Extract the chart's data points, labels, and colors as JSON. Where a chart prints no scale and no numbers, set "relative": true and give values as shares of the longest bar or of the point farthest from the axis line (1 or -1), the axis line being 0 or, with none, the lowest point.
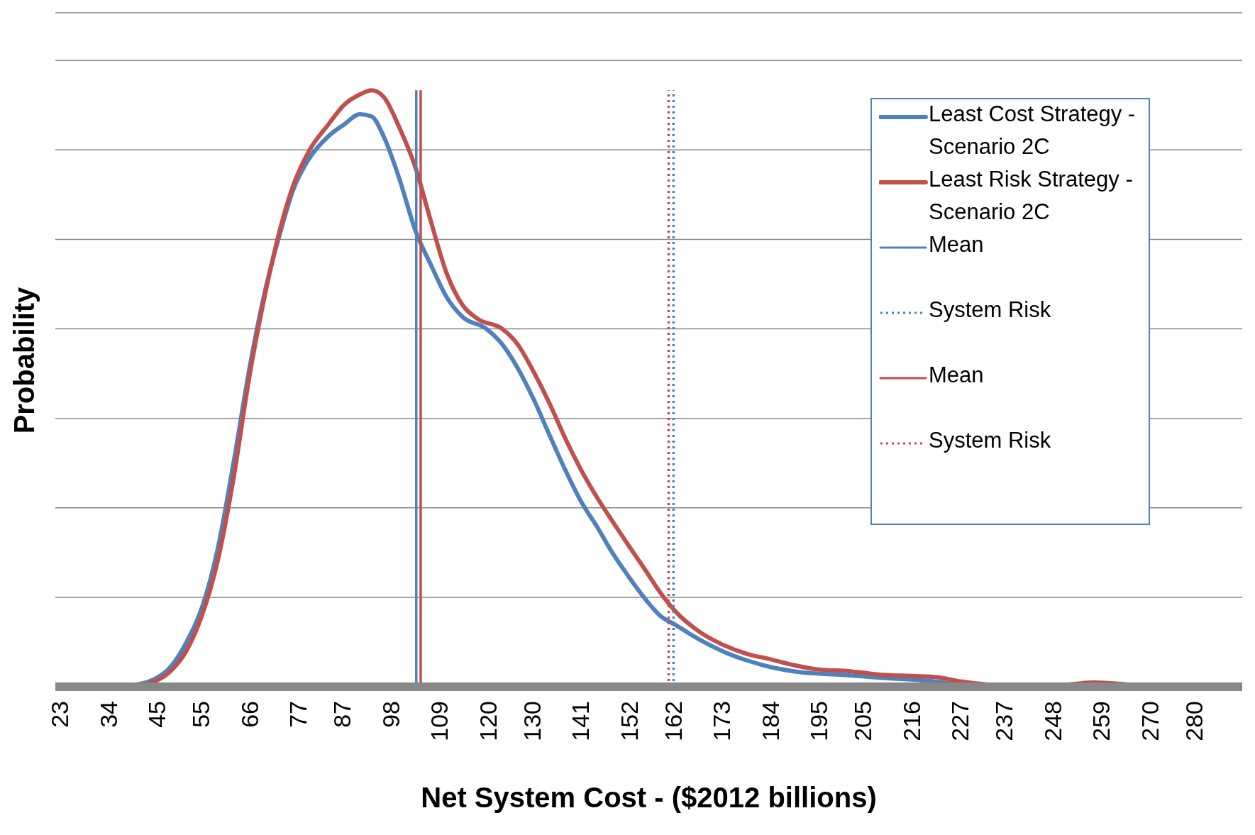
{
  "chart_data": {
    "type": "line",
    "xlabel": "Net System Cost - ($2012 billions)",
    "ylabel": "Probability",
    "relative": true,
    "grid": "y",
    "legend": "top right",
    "marker": "none",
    "xlim": [
      22,
      291
    ],
    "xticks": [
      23,
      34,
      45,
      55,
      66,
      77,
      87,
      98,
      109,
      120,
      130,
      141,
      152,
      162,
      173,
      184,
      195,
      205,
      216,
      227,
      237,
      248,
      259,
      270,
      280
    ],
    "series": [
      {
        "name": "Least Cost Strategy - Scenario 2C",
        "color": "#4f81bd",
        "line_style": "solid",
        "x": [
          22.1,
          39.1,
          44.5,
          48.1,
          51.6,
          55.2,
          58.8,
          62.4,
          66.0,
          69.6,
          73.1,
          75.8,
          79.4,
          83.9,
          87.5,
          91.0,
          93.7,
          96.4,
          100.0,
          103.6,
          107.2,
          110.7,
          114.3,
          119.7,
          123.3,
          126.8,
          130.4,
          134.0,
          137.6,
          141.2,
          144.8,
          148.3,
          151.9,
          155.5,
          159.1,
          162.7,
          168.0,
          173.4,
          178.8,
          184.1,
          191.3,
          200.3,
          209.2,
          218.2,
          227.1,
          236.1,
          290.3
        ],
        "values": [
          0,
          0.003,
          0.013,
          0.033,
          0.073,
          0.132,
          0.231,
          0.376,
          0.534,
          0.666,
          0.765,
          0.831,
          0.884,
          0.923,
          0.943,
          0.96,
          0.956,
          0.923,
          0.851,
          0.765,
          0.706,
          0.653,
          0.62,
          0.6,
          0.574,
          0.534,
          0.482,
          0.422,
          0.363,
          0.31,
          0.268,
          0.224,
          0.185,
          0.149,
          0.119,
          0.103,
          0.079,
          0.059,
          0.044,
          0.033,
          0.024,
          0.02,
          0.015,
          0.011,
          0.004,
          0,
          0
        ]
      },
      {
        "name": "Least Risk Strategy - Scenario 2C",
        "color": "#c0504d",
        "line_style": "solid",
        "x": [
          25.7,
          39.1,
          44.5,
          48.1,
          51.6,
          55.2,
          58.8,
          62.4,
          66.0,
          69.6,
          73.1,
          75.8,
          79.4,
          83.9,
          87.5,
          91.0,
          93.7,
          96.4,
          100.0,
          103.6,
          107.2,
          110.7,
          114.3,
          117.9,
          123.3,
          126.8,
          130.4,
          134.0,
          137.6,
          141.2,
          144.8,
          148.3,
          151.9,
          155.5,
          159.1,
          162.7,
          168.0,
          173.4,
          178.8,
          184.1,
          189.5,
          194.9,
          202.1,
          209.2,
          216.4,
          221.7,
          227.1,
          234.3,
          245.0,
          257.6,
          264.7,
          271.9,
          279.9
        ],
        "values": [
          0,
          0.001,
          0.009,
          0.026,
          0.059,
          0.119,
          0.211,
          0.35,
          0.521,
          0.66,
          0.772,
          0.838,
          0.897,
          0.943,
          0.976,
          0.993,
          1,
          0.989,
          0.937,
          0.871,
          0.778,
          0.693,
          0.64,
          0.616,
          0.6,
          0.574,
          0.528,
          0.475,
          0.416,
          0.363,
          0.317,
          0.277,
          0.237,
          0.198,
          0.158,
          0.125,
          0.092,
          0.07,
          0.055,
          0.046,
          0.036,
          0.029,
          0.026,
          0.02,
          0.018,
          0.016,
          0.009,
          0.003,
          0,
          0.007,
          0.004,
          0,
          0
        ]
      },
      {
        "name": "Mean",
        "color": "#4f81bd",
        "line_style": "solid",
        "x": [
          103.8,
          103.8
        ],
        "values": [
          0,
          1
        ]
      },
      {
        "name": "System Risk",
        "color": "#4f81bd",
        "line_style": "dotted",
        "x": [
          162.1,
          162.1
        ],
        "values": [
          0,
          1
        ]
      },
      {
        "name": "Mean",
        "color": "#c0504d",
        "line_style": "solid",
        "x": [
          104.8,
          104.8
        ],
        "values": [
          0,
          1
        ]
      },
      {
        "name": "System Risk",
        "color": "#c0504d",
        "line_style": "dotted",
        "x": [
          161.0,
          161.0
        ],
        "values": [
          0,
          1
        ]
      }
    ]
  }
}
